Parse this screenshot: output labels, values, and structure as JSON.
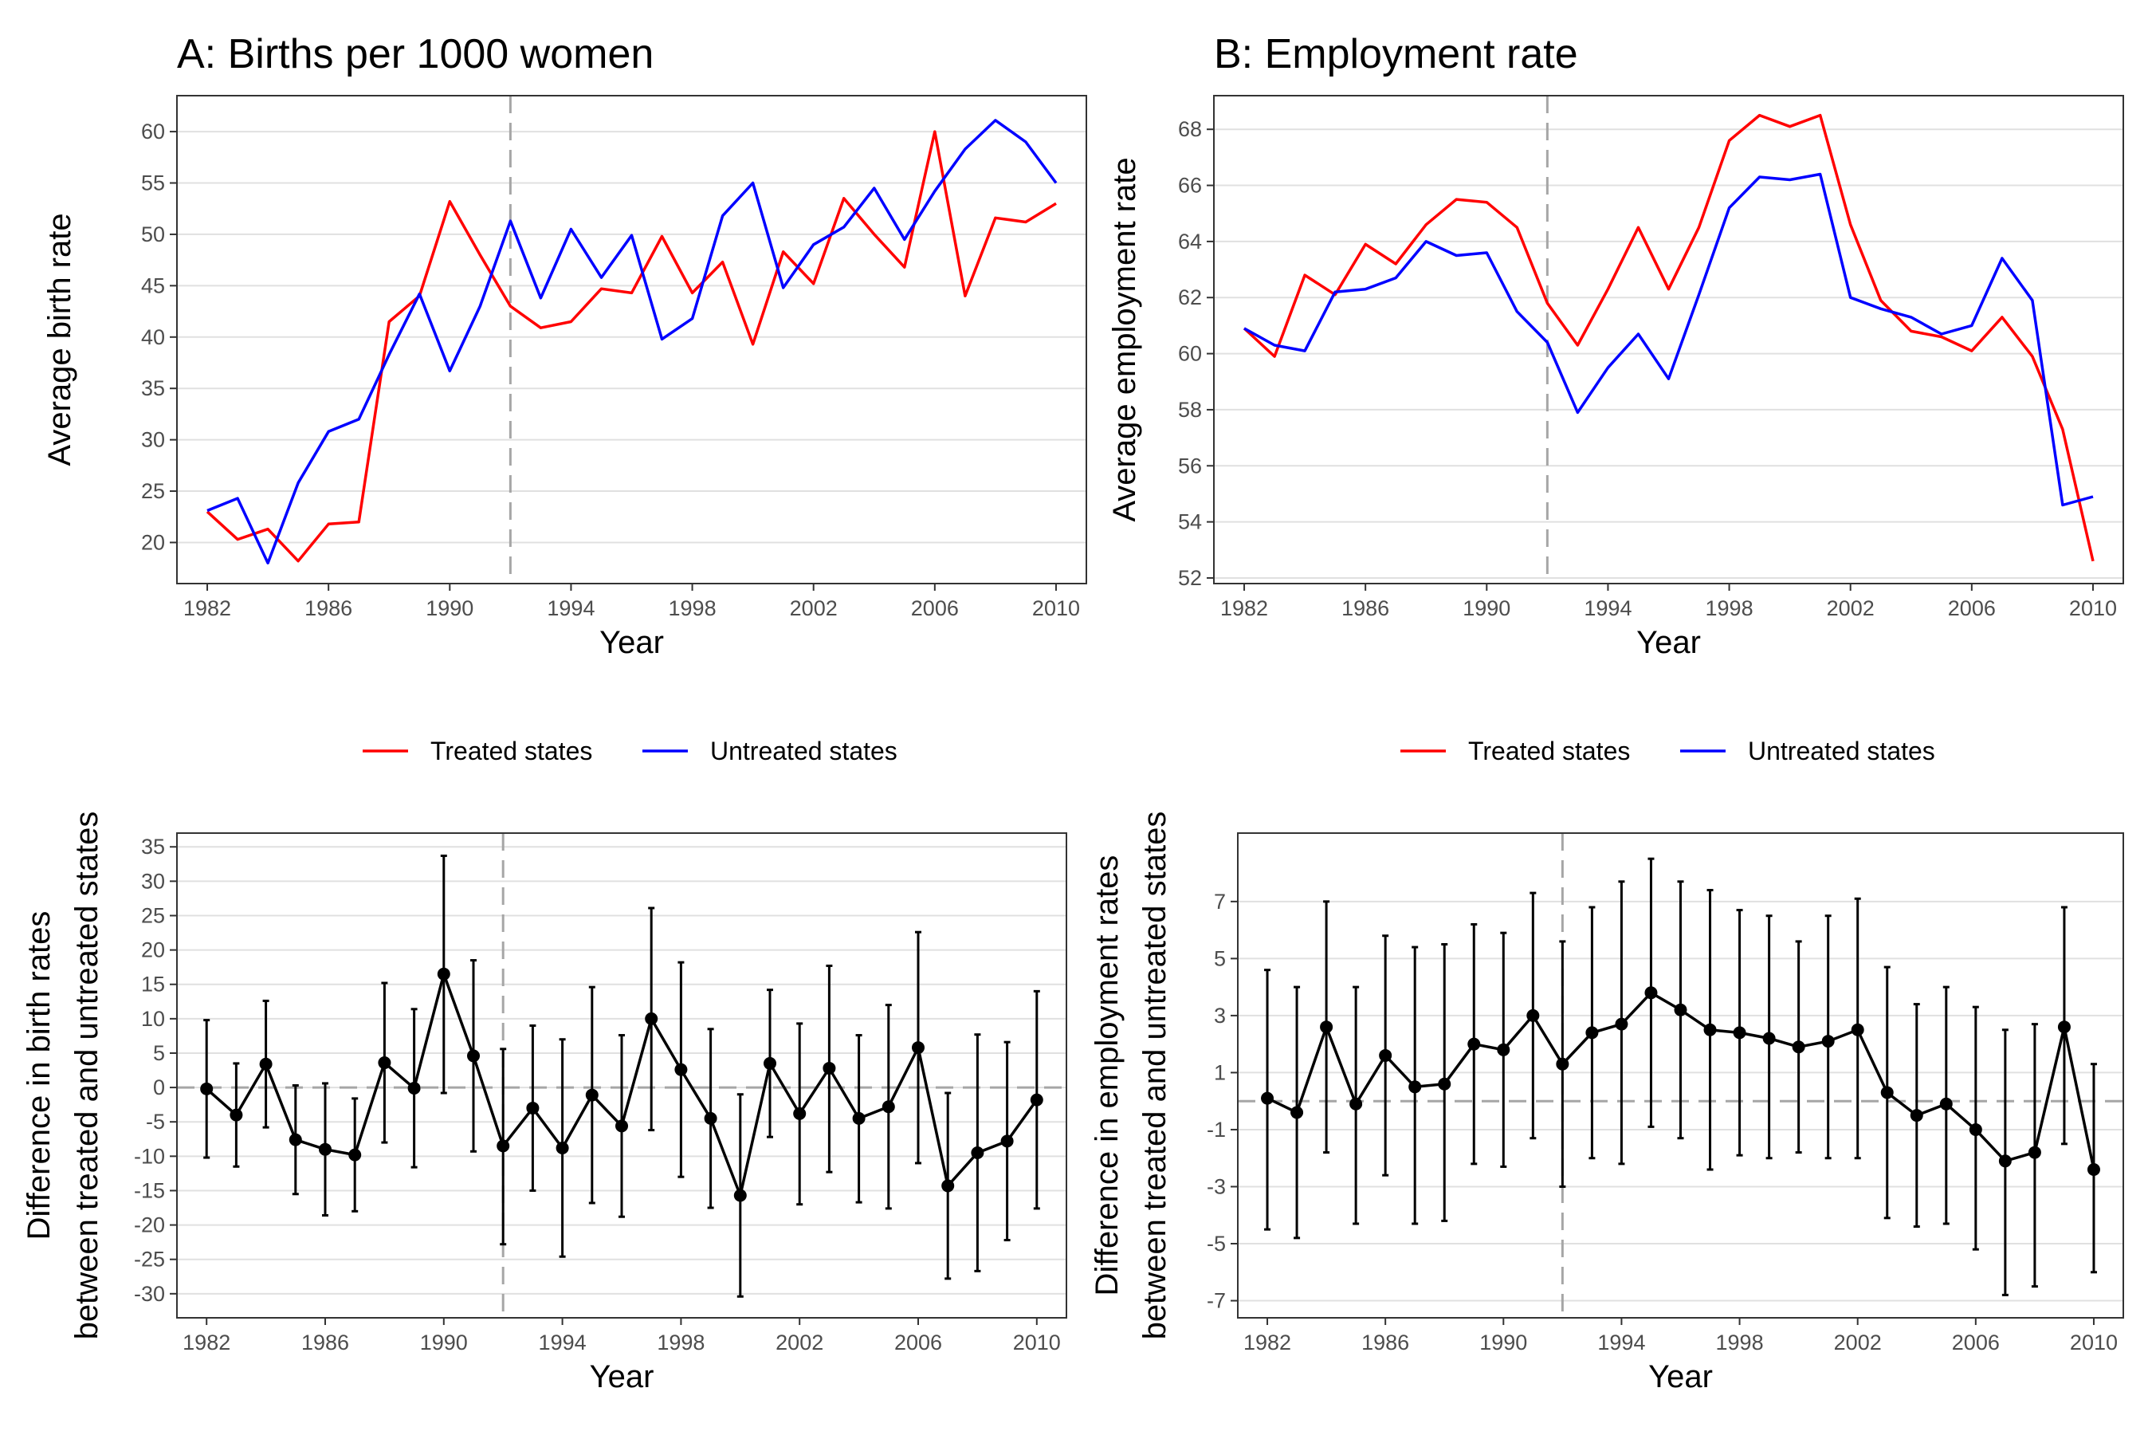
{
  "chart_data": [
    {
      "type": "line",
      "title": "A: Births per 1000 women",
      "xlabel": "Year",
      "ylabel": "Average birth rate",
      "x": [
        1982,
        1983,
        1984,
        1985,
        1986,
        1987,
        1988,
        1989,
        1990,
        1991,
        1992,
        1993,
        1994,
        1995,
        1996,
        1997,
        1998,
        1999,
        2000,
        2001,
        2002,
        2003,
        2004,
        2005,
        2006,
        2007,
        2008,
        2009,
        2010
      ],
      "series": [
        {
          "name": "Treated states",
          "color": "#ff0000",
          "values": [
            23.0,
            20.3,
            21.3,
            18.2,
            21.8,
            22.0,
            41.5,
            44.0,
            53.2,
            48.0,
            43.0,
            40.9,
            41.5,
            44.7,
            44.3,
            49.8,
            44.3,
            47.3,
            39.3,
            48.3,
            45.2,
            53.5,
            50.0,
            46.8,
            60.0,
            44.0,
            51.6,
            51.2,
            53.0
          ]
        },
        {
          "name": "Untreated states",
          "color": "#0000ff",
          "values": [
            23.1,
            24.3,
            18.0,
            25.8,
            30.8,
            32.0,
            38.3,
            44.2,
            36.7,
            43.0,
            51.3,
            43.8,
            50.5,
            45.8,
            49.9,
            39.8,
            41.8,
            51.8,
            55.0,
            44.8,
            49.0,
            50.7,
            54.5,
            49.5,
            54.2,
            58.3,
            61.1,
            59.0,
            55.0
          ]
        }
      ],
      "xlim": [
        1981,
        2011
      ],
      "ylim": [
        16,
        63.5
      ],
      "xticks": [
        1982,
        1986,
        1990,
        1994,
        1998,
        2002,
        2006,
        2010
      ],
      "yticks": [
        20,
        25,
        30,
        35,
        40,
        45,
        50,
        55,
        60
      ],
      "vline": 1992,
      "grid": true
    },
    {
      "type": "line",
      "title": "B: Employment rate",
      "xlabel": "Year",
      "ylabel": "Average employment rate",
      "x": [
        1982,
        1983,
        1984,
        1985,
        1986,
        1987,
        1988,
        1989,
        1990,
        1991,
        1992,
        1993,
        1994,
        1995,
        1996,
        1997,
        1998,
        1999,
        2000,
        2001,
        2002,
        2003,
        2004,
        2005,
        2006,
        2007,
        2008,
        2009,
        2010
      ],
      "series": [
        {
          "name": "Treated states",
          "color": "#ff0000",
          "values": [
            60.9,
            59.9,
            62.8,
            62.1,
            63.9,
            63.2,
            64.6,
            65.5,
            65.4,
            64.5,
            61.8,
            60.3,
            62.3,
            64.5,
            62.3,
            64.5,
            67.6,
            68.5,
            68.1,
            68.5,
            64.6,
            61.9,
            60.8,
            60.6,
            60.1,
            61.3,
            59.9,
            57.3,
            52.6
          ]
        },
        {
          "name": "Untreated states",
          "color": "#0000ff",
          "values": [
            60.9,
            60.3,
            60.1,
            62.2,
            62.3,
            62.7,
            64.0,
            63.5,
            63.6,
            61.5,
            60.4,
            57.9,
            59.5,
            60.7,
            59.1,
            62.1,
            65.2,
            66.3,
            66.2,
            66.4,
            62.0,
            61.6,
            61.3,
            60.7,
            61.0,
            63.4,
            61.9,
            54.6,
            54.9
          ]
        }
      ],
      "xlim": [
        1981,
        2011
      ],
      "ylim": [
        51.8,
        69.2
      ],
      "xticks": [
        1982,
        1986,
        1990,
        1994,
        1998,
        2002,
        2006,
        2010
      ],
      "yticks": [
        52,
        54,
        56,
        58,
        60,
        62,
        64,
        66,
        68
      ],
      "vline": 1992,
      "grid": true
    },
    {
      "type": "scatter",
      "title": "",
      "xlabel": "Year",
      "ylabel": [
        "Difference in birth rates",
        "between treated and untreated states"
      ],
      "x": [
        1982,
        1983,
        1984,
        1985,
        1986,
        1987,
        1988,
        1989,
        1990,
        1991,
        1992,
        1993,
        1994,
        1995,
        1996,
        1997,
        1998,
        1999,
        2000,
        2001,
        2002,
        2003,
        2004,
        2005,
        2006,
        2007,
        2008,
        2009,
        2010
      ],
      "series": [
        {
          "values": [
            -0.2,
            -4.0,
            3.4,
            -7.6,
            -9.0,
            -9.8,
            3.6,
            -0.1,
            16.5,
            4.6,
            -8.5,
            -3.0,
            -8.8,
            -1.1,
            -5.6,
            10.0,
            2.6,
            -4.5,
            -15.7,
            3.5,
            -3.8,
            2.8,
            -4.5,
            -2.8,
            5.8,
            -14.3,
            -9.5,
            -7.8,
            -1.8
          ],
          "lower": [
            -10.2,
            -11.5,
            -5.8,
            -15.5,
            -18.6,
            -18.0,
            -8.0,
            -11.6,
            -0.8,
            -9.3,
            -22.8,
            -15.0,
            -24.6,
            -16.8,
            -18.8,
            -6.2,
            -13.0,
            -17.5,
            -30.4,
            -7.2,
            -17.0,
            -12.3,
            -16.7,
            -17.6,
            -11.0,
            -27.8,
            -26.7,
            -22.2,
            -17.6
          ],
          "upper": [
            9.8,
            3.5,
            12.6,
            0.3,
            0.6,
            -1.6,
            15.2,
            11.4,
            33.7,
            18.5,
            5.6,
            9.0,
            7.0,
            14.6,
            7.6,
            26.1,
            18.2,
            8.5,
            -1.0,
            14.2,
            9.3,
            17.7,
            7.6,
            12.0,
            22.6,
            -0.8,
            7.7,
            6.6,
            14.0
          ]
        }
      ],
      "xlim": [
        1981,
        2011
      ],
      "ylim": [
        -33.5,
        37
      ],
      "xticks": [
        1982,
        1986,
        1990,
        1994,
        1998,
        2002,
        2006,
        2010
      ],
      "yticks": [
        -30,
        -25,
        -20,
        -15,
        -10,
        -5,
        0,
        5,
        10,
        15,
        20,
        25,
        30,
        35
      ],
      "ytick_labels": [
        "-30",
        "-25",
        "-20",
        "-15",
        "-10",
        "-5",
        "0",
        "5",
        "10",
        "15",
        "20",
        "25",
        "30",
        "35"
      ],
      "vline": 1992,
      "hline": 0,
      "grid": true
    },
    {
      "type": "scatter",
      "title": "",
      "xlabel": "Year",
      "ylabel": [
        "Difference in employment rates",
        "between treated and untreated states"
      ],
      "x": [
        1982,
        1983,
        1984,
        1985,
        1986,
        1987,
        1988,
        1989,
        1990,
        1991,
        1992,
        1993,
        1994,
        1995,
        1996,
        1997,
        1998,
        1999,
        2000,
        2001,
        2002,
        2003,
        2004,
        2005,
        2006,
        2007,
        2008,
        2009,
        2010
      ],
      "series": [
        {
          "values": [
            0.1,
            -0.4,
            2.6,
            -0.1,
            1.6,
            0.5,
            0.6,
            2.0,
            1.8,
            3.0,
            1.3,
            2.4,
            2.7,
            3.8,
            3.2,
            2.5,
            2.4,
            2.2,
            1.9,
            2.1,
            2.5,
            0.3,
            -0.5,
            -0.1,
            -1.0,
            -2.1,
            -1.8,
            2.6,
            -2.4
          ],
          "lower": [
            -4.5,
            -4.8,
            -1.8,
            -4.3,
            -2.6,
            -4.3,
            -4.2,
            -2.2,
            -2.3,
            -1.3,
            -3.0,
            -2.0,
            -2.2,
            -0.9,
            -1.3,
            -2.4,
            -1.9,
            -2.0,
            -1.8,
            -2.0,
            -2.0,
            -4.1,
            -4.4,
            -4.3,
            -5.2,
            -6.8,
            -6.5,
            -1.5,
            -6.0
          ],
          "upper": [
            4.6,
            4.0,
            7.0,
            4.0,
            5.8,
            5.4,
            5.5,
            6.2,
            5.9,
            7.3,
            5.6,
            6.8,
            7.7,
            8.5,
            7.7,
            7.4,
            6.7,
            6.5,
            5.6,
            6.5,
            7.1,
            4.7,
            3.4,
            4.0,
            3.3,
            2.5,
            2.7,
            6.8,
            1.3
          ]
        }
      ],
      "xlim": [
        1981,
        2011
      ],
      "ylim": [
        -7.6,
        9.4
      ],
      "xticks": [
        1982,
        1986,
        1990,
        1994,
        1998,
        2002,
        2006,
        2010
      ],
      "yticks": [
        -7,
        -5,
        -3,
        -1,
        1,
        3,
        5,
        7
      ],
      "ytick_labels": [
        "-7",
        "-5",
        "-3",
        "-1",
        "1",
        "3",
        "5",
        "7"
      ],
      "vline": 1992,
      "hline": 0,
      "grid": true
    }
  ],
  "legend": {
    "items": [
      {
        "label": "Treated states",
        "color": "#ff0000"
      },
      {
        "label": "Untreated states",
        "color": "#0000ff"
      }
    ]
  }
}
